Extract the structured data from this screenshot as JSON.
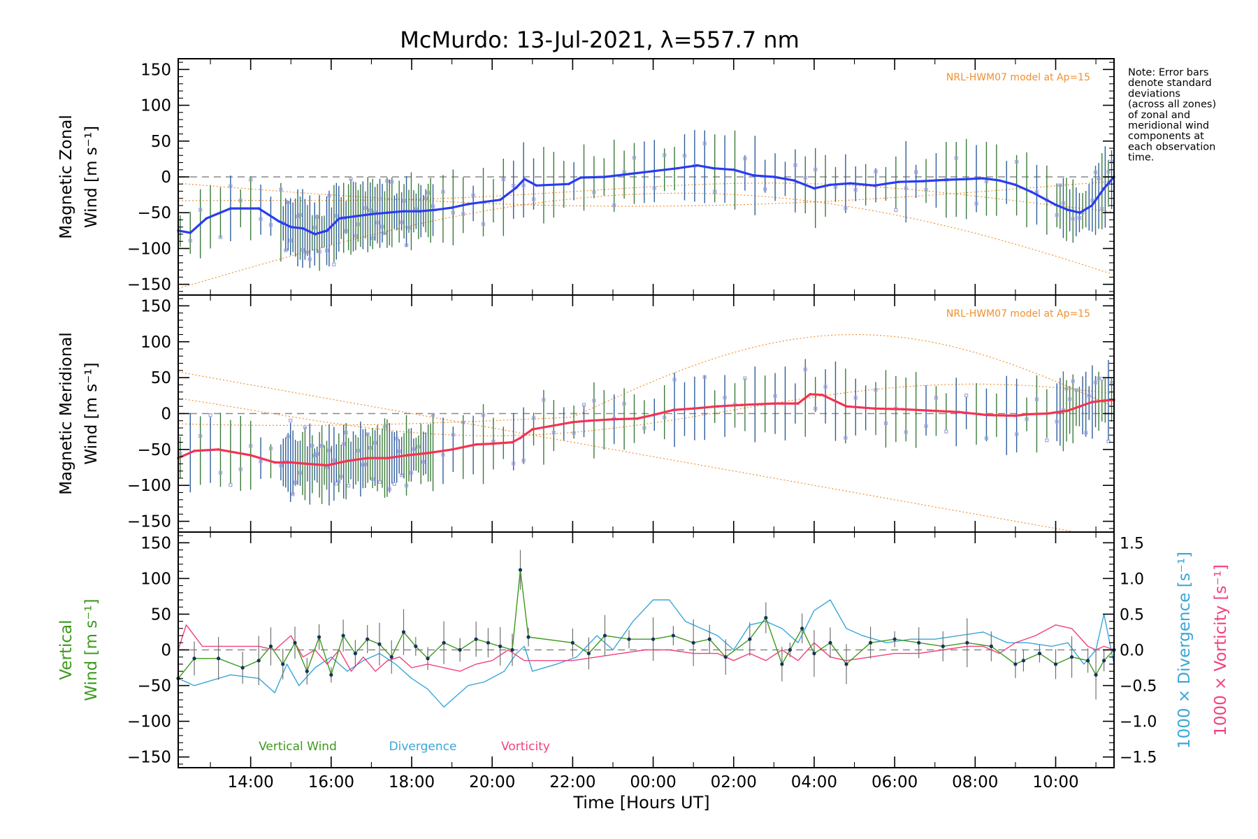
{
  "chart_data": {
    "type": "line",
    "title": "McMurdo: 13-Jul-2021, λ=557.7 nm",
    "xlabel": "Time [Hours UT]",
    "xlim": [
      12.2,
      35.45
    ],
    "x_ticks": [
      14,
      16,
      18,
      20,
      22,
      24,
      26,
      28,
      30,
      32,
      34
    ],
    "x_tick_labels": [
      "14:00",
      "16:00",
      "18:00",
      "20:00",
      "22:00",
      "00:00",
      "02:00",
      "04:00",
      "06:00",
      "08:00",
      "10:00"
    ],
    "note_lines": [
      "Note: Error bars",
      "denote standard",
      "deviations",
      "(across all zones)",
      "of zonal and",
      "meridional wind",
      "components at",
      "each observation",
      "time."
    ],
    "colors": {
      "zonal": "#2a3cf0",
      "meridional": "#f43252",
      "vertical": "#3c9a1c",
      "divergence": "#3aa6d8",
      "vorticity": "#f2407e",
      "model": "#f09030",
      "scatter": "#a4a4e6",
      "errorbar": "#4a4a4a"
    },
    "panels": [
      {
        "id": "zonal",
        "ylabel_lines": [
          "Magnetic Zonal",
          "Wind [m s⁻¹]"
        ],
        "ylim": [
          -165,
          165
        ],
        "y_ticks": [
          150,
          100,
          50,
          0,
          -50,
          -100,
          -150
        ],
        "y_tick_labels": [
          "150",
          "100",
          "50",
          "0",
          "−50",
          "−100",
          "−150"
        ],
        "model_label": "NRL-HWM07 model at Ap=15",
        "series": {
          "name": "Zonal wind",
          "x": [
            12.2,
            12.5,
            12.9,
            13.5,
            14.2,
            14.7,
            15.0,
            15.3,
            15.6,
            15.9,
            16.2,
            16.6,
            17.0,
            17.4,
            17.8,
            18.2,
            18.6,
            19.0,
            19.4,
            19.8,
            20.2,
            20.6,
            20.8,
            21.1,
            21.9,
            22.2,
            22.8,
            23.4,
            24.0,
            24.6,
            25.1,
            25.5,
            26.0,
            26.5,
            27.0,
            27.5,
            28.0,
            28.4,
            28.9,
            29.5,
            30.1,
            30.7,
            31.3,
            31.8,
            32.2,
            32.6,
            33.0,
            33.4,
            34.0,
            34.3,
            34.6,
            34.9,
            35.2,
            35.45
          ],
          "y": [
            -75,
            -78,
            -58,
            -44,
            -44,
            -62,
            -70,
            -72,
            -80,
            -75,
            -58,
            -55,
            -52,
            -50,
            -48,
            -48,
            -46,
            -43,
            -38,
            -35,
            -32,
            -15,
            -3,
            -12,
            -10,
            -1,
            0,
            4,
            8,
            12,
            16,
            12,
            10,
            2,
            0,
            -5,
            -16,
            -11,
            -9,
            -12,
            -7,
            -6,
            -4,
            -3,
            -2,
            -5,
            -11,
            -21,
            -39,
            -46,
            -50,
            -40,
            -16,
            0
          ]
        }
      },
      {
        "id": "meridional",
        "ylabel_lines": [
          "Magnetic Meridional",
          "Wind [m s⁻¹]"
        ],
        "ylim": [
          -165,
          165
        ],
        "y_ticks": [
          150,
          100,
          50,
          0,
          -50,
          -100,
          -150
        ],
        "y_tick_labels": [
          "150",
          "100",
          "50",
          "0",
          "−50",
          "−100",
          "−150"
        ],
        "model_label": "NRL-HWM07 model at Ap=15",
        "series": {
          "name": "Meridional wind",
          "x": [
            12.2,
            12.6,
            13.2,
            14.0,
            14.6,
            15.0,
            15.4,
            15.9,
            16.4,
            16.9,
            17.4,
            17.9,
            18.4,
            19.0,
            19.6,
            20.0,
            20.5,
            20.7,
            21.0,
            22.0,
            22.4,
            23.0,
            23.6,
            24.0,
            24.5,
            25.0,
            25.6,
            26.2,
            27.0,
            27.6,
            27.9,
            28.2,
            28.8,
            29.5,
            30.2,
            30.9,
            31.6,
            32.3,
            33.0,
            33.3,
            33.8,
            34.3,
            34.6,
            34.9,
            35.2,
            35.45
          ],
          "y": [
            -62,
            -52,
            -50,
            -58,
            -68,
            -68,
            -70,
            -72,
            -66,
            -62,
            -62,
            -58,
            -55,
            -50,
            -43,
            -42,
            -40,
            -34,
            -22,
            -12,
            -10,
            -8,
            -7,
            -2,
            5,
            7,
            10,
            12,
            14,
            14,
            27,
            26,
            10,
            7,
            6,
            4,
            2,
            -2,
            -3,
            -1,
            0,
            4,
            10,
            16,
            18,
            19
          ]
        }
      },
      {
        "id": "vertical",
        "ylabel_lines": [
          "Vertical",
          "Wind [m s⁻¹]"
        ],
        "ylim": [
          -165,
          165
        ],
        "y_ticks": [
          150,
          100,
          50,
          0,
          -50,
          -100,
          -150
        ],
        "y_tick_labels": [
          "150",
          "100",
          "50",
          "0",
          "−50",
          "−100",
          "−150"
        ],
        "right_axis": {
          "labels": [
            "1000 × Divergence [s⁻¹]",
            "1000 × Vorticity [s⁻¹]"
          ],
          "ylim": [
            -1.65,
            1.65
          ],
          "ticks": [
            1.5,
            1.0,
            0.5,
            0.0,
            -0.5,
            -1.0,
            -1.5
          ],
          "tick_labels": [
            "1.5",
            "1.0",
            "0.5",
            "0.0",
            "−0.5",
            "−1.0",
            "−1.5"
          ]
        },
        "legend": [
          "Vertical Wind",
          "Divergence",
          "Vorticity"
        ],
        "series": [
          {
            "name": "Vertical Wind",
            "x": [
              12.2,
              12.6,
              13.2,
              13.8,
              14.2,
              14.5,
              14.8,
              15.1,
              15.4,
              15.7,
              16.0,
              16.3,
              16.6,
              16.9,
              17.2,
              17.5,
              17.8,
              18.1,
              18.4,
              18.8,
              19.2,
              19.6,
              19.9,
              20.2,
              20.5,
              20.7,
              20.9,
              22.0,
              22.4,
              22.8,
              23.4,
              24.0,
              24.5,
              25.0,
              25.4,
              25.8,
              26.4,
              26.8,
              27.2,
              27.4,
              27.7,
              28.0,
              28.4,
              28.8,
              29.4,
              30.0,
              30.6,
              31.2,
              31.8,
              32.4,
              33.0,
              33.2,
              33.6,
              34.0,
              34.4,
              34.8,
              35.0,
              35.2,
              35.45
            ],
            "y": [
              -40,
              -12,
              -12,
              -25,
              -15,
              5,
              -20,
              10,
              -30,
              18,
              -35,
              20,
              -5,
              15,
              8,
              -10,
              25,
              5,
              -12,
              10,
              0,
              15,
              10,
              5,
              0,
              112,
              18,
              10,
              -5,
              20,
              15,
              15,
              20,
              10,
              15,
              -10,
              15,
              45,
              -20,
              0,
              30,
              -5,
              10,
              -20,
              10,
              15,
              10,
              5,
              10,
              5,
              -20,
              -15,
              -5,
              -20,
              -10,
              -15,
              -35,
              -15,
              0
            ]
          },
          {
            "name": "Divergence",
            "x": [
              12.2,
              12.6,
              13.5,
              14.2,
              14.6,
              14.9,
              15.2,
              15.6,
              16.0,
              16.4,
              16.8,
              17.2,
              17.6,
              18.0,
              18.4,
              18.8,
              19.0,
              19.4,
              19.8,
              20.3,
              20.6,
              20.8,
              21.0,
              21.6,
              22.1,
              22.6,
              23.0,
              23.5,
              24.0,
              24.4,
              24.8,
              25.2,
              25.6,
              26.0,
              26.4,
              26.8,
              27.2,
              27.6,
              28.0,
              28.4,
              28.8,
              29.2,
              29.8,
              30.4,
              31.0,
              31.6,
              32.2,
              32.8,
              33.3,
              33.9,
              34.3,
              34.7,
              35.0,
              35.2,
              35.45
            ],
            "y": [
              -0.4,
              -0.5,
              -0.35,
              -0.4,
              -0.6,
              -0.2,
              -0.5,
              -0.25,
              -0.1,
              -0.3,
              -0.15,
              -0.05,
              -0.2,
              -0.4,
              -0.55,
              -0.8,
              -0.7,
              -0.5,
              -0.45,
              -0.3,
              -0.05,
              0.05,
              -0.3,
              -0.2,
              -0.1,
              0.2,
              0.0,
              0.4,
              0.7,
              0.7,
              0.4,
              0.3,
              0.2,
              0.0,
              0.35,
              0.4,
              0.3,
              0.1,
              0.55,
              0.7,
              0.3,
              0.2,
              0.1,
              0.15,
              0.15,
              0.2,
              0.25,
              0.1,
              0.1,
              0.05,
              0.1,
              -0.2,
              0.0,
              0.5,
              -0.2
            ]
          },
          {
            "name": "Vorticity",
            "x": [
              12.2,
              12.4,
              12.8,
              13.5,
              14.2,
              14.6,
              15.0,
              15.3,
              15.6,
              15.9,
              16.2,
              16.5,
              16.8,
              17.1,
              17.4,
              17.7,
              18.0,
              18.4,
              18.8,
              19.2,
              19.6,
              20.0,
              20.4,
              20.8,
              21.2,
              22.0,
              22.6,
              23.2,
              23.8,
              24.4,
              25.0,
              25.6,
              26.0,
              26.4,
              26.8,
              27.2,
              27.6,
              28.0,
              28.4,
              28.8,
              29.4,
              30.0,
              30.6,
              31.2,
              31.8,
              32.2,
              32.6,
              33.0,
              33.5,
              34.0,
              34.4,
              34.8,
              35.0,
              35.2,
              35.45
            ],
            "y": [
              0.0,
              0.35,
              0.05,
              0.05,
              0.05,
              0.0,
              0.2,
              -0.1,
              0.0,
              -0.2,
              0.0,
              -0.3,
              -0.1,
              -0.3,
              -0.15,
              -0.1,
              -0.25,
              -0.2,
              -0.25,
              -0.3,
              -0.2,
              -0.15,
              0.0,
              -0.15,
              -0.15,
              -0.15,
              -0.1,
              -0.05,
              0.0,
              0.0,
              -0.05,
              -0.05,
              -0.15,
              -0.05,
              -0.15,
              0.0,
              -0.15,
              0.1,
              -0.1,
              -0.15,
              -0.1,
              -0.05,
              -0.05,
              0.0,
              0.05,
              0.05,
              -0.05,
              0.1,
              0.2,
              0.35,
              0.3,
              0.05,
              0.0,
              0.05,
              0.0
            ]
          }
        ]
      }
    ]
  }
}
